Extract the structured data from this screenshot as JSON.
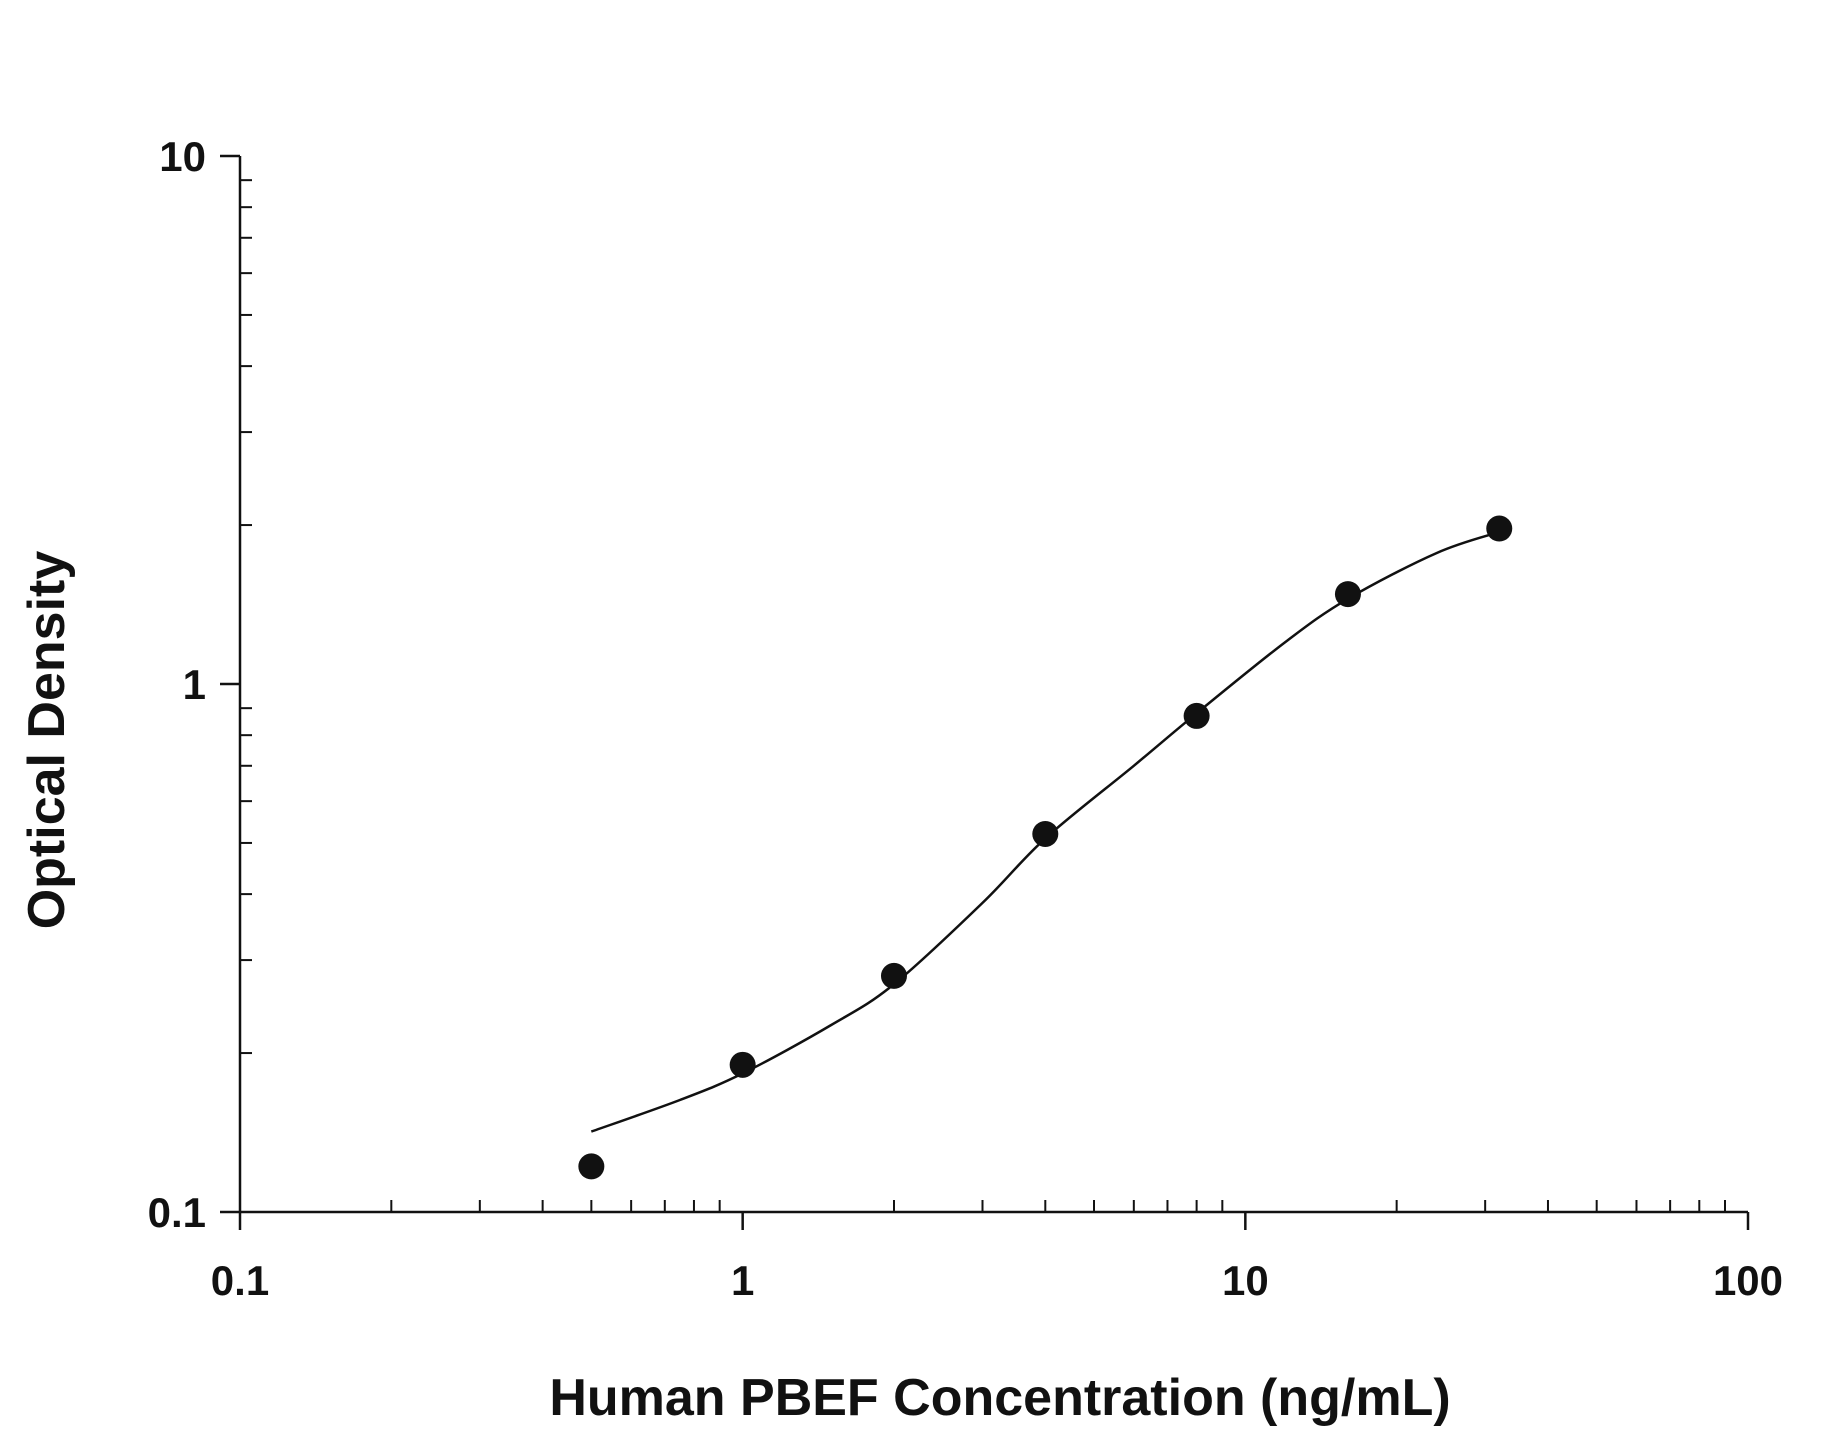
{
  "chart_data": {
    "type": "scatter",
    "title": "",
    "xlabel": "Human PBEF Concentration (ng/mL)",
    "ylabel": "Optical Density",
    "x_scale": "log",
    "y_scale": "log",
    "xlim": [
      0.1,
      100
    ],
    "ylim": [
      0.1,
      10
    ],
    "x_ticks": [
      {
        "value": 0.1,
        "label": "0.1"
      },
      {
        "value": 1,
        "label": "1"
      },
      {
        "value": 10,
        "label": "10"
      },
      {
        "value": 100,
        "label": "100"
      }
    ],
    "y_ticks": [
      {
        "value": 0.1,
        "label": "0.1"
      },
      {
        "value": 1,
        "label": "1"
      },
      {
        "value": 10,
        "label": "10"
      }
    ],
    "grid": false,
    "legend": "none",
    "series": [
      {
        "x": [
          0.5,
          1,
          2,
          4,
          8,
          16,
          32
        ],
        "y": [
          0.122,
          0.19,
          0.28,
          0.52,
          0.87,
          1.48,
          1.97
        ],
        "marker": "filled-circle",
        "color": "#111111"
      }
    ],
    "fit_curve": {
      "x": [
        0.5,
        0.75,
        1,
        1.5,
        2,
        3,
        4,
        6,
        8,
        12,
        16,
        24,
        32
      ],
      "y": [
        0.142,
        0.163,
        0.183,
        0.226,
        0.27,
        0.385,
        0.51,
        0.7,
        0.88,
        1.2,
        1.45,
        1.77,
        1.94
      ],
      "color": "#111111"
    }
  }
}
